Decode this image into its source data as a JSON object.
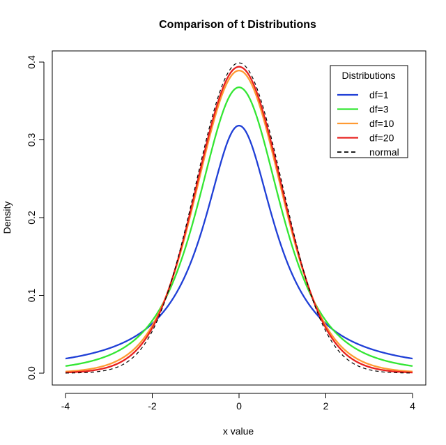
{
  "chart_data": {
    "type": "line",
    "title": "Comparison of t Distributions",
    "xlabel": "x value",
    "ylabel": "Density",
    "xlim": [
      -4,
      4
    ],
    "ylim": [
      0,
      0.4
    ],
    "x_ticks": [
      -4,
      -2,
      0,
      2,
      4
    ],
    "x_tick_labels": [
      "-4",
      "-2",
      "0",
      "2",
      "4"
    ],
    "y_ticks": [
      0.0,
      0.1,
      0.2,
      0.3,
      0.4
    ],
    "y_tick_labels": [
      "0.0",
      "0.1",
      "0.2",
      "0.3",
      "0.4"
    ],
    "grid": false,
    "legend": {
      "title": "Distributions",
      "position": "top-right"
    },
    "series": [
      {
        "name": "df=1",
        "df": 1,
        "color": "#1f3fd6",
        "dash": "solid"
      },
      {
        "name": "df=3",
        "df": 3,
        "color": "#33e633",
        "dash": "solid"
      },
      {
        "name": "df=10",
        "df": 10,
        "color": "#ff9a33",
        "dash": "solid"
      },
      {
        "name": "df=20",
        "df": 20,
        "color": "#e8201e",
        "dash": "solid"
      },
      {
        "name": "normal",
        "df": null,
        "color": "#000000",
        "dash": "dashed"
      }
    ],
    "x": [
      -4,
      -3.5,
      -3,
      -2.5,
      -2,
      -1.5,
      -1,
      -0.5,
      0,
      0.5,
      1,
      1.5,
      2,
      2.5,
      3,
      3.5,
      4
    ],
    "series_values": {
      "df=1": [
        0.0187,
        0.0241,
        0.0318,
        0.0439,
        0.0637,
        0.0979,
        0.1592,
        0.2546,
        0.3183,
        0.2546,
        0.1592,
        0.0979,
        0.0637,
        0.0439,
        0.0318,
        0.0241,
        0.0187
      ],
      "df=3": [
        0.0092,
        0.014,
        0.023,
        0.04,
        0.0675,
        0.12,
        0.2067,
        0.3125,
        0.3676,
        0.3125,
        0.2067,
        0.12,
        0.0675,
        0.04,
        0.023,
        0.014,
        0.0092
      ],
      "df=10": [
        0.002,
        0.0044,
        0.0114,
        0.0269,
        0.0611,
        0.1274,
        0.2304,
        0.3404,
        0.3891,
        0.3404,
        0.2304,
        0.1274,
        0.0611,
        0.0269,
        0.0114,
        0.0044,
        0.002
      ],
      "df=20": [
        0.0009,
        0.0025,
        0.0075,
        0.0221,
        0.0581,
        0.1295,
        0.236,
        0.3466,
        0.394,
        0.3466,
        0.236,
        0.1295,
        0.0581,
        0.0221,
        0.0075,
        0.0025,
        0.0009
      ],
      "normal": [
        0.0001,
        0.0009,
        0.0044,
        0.0175,
        0.054,
        0.1295,
        0.242,
        0.3521,
        0.3989,
        0.3521,
        0.242,
        0.1295,
        0.054,
        0.0175,
        0.0044,
        0.0009,
        0.0001
      ]
    }
  }
}
